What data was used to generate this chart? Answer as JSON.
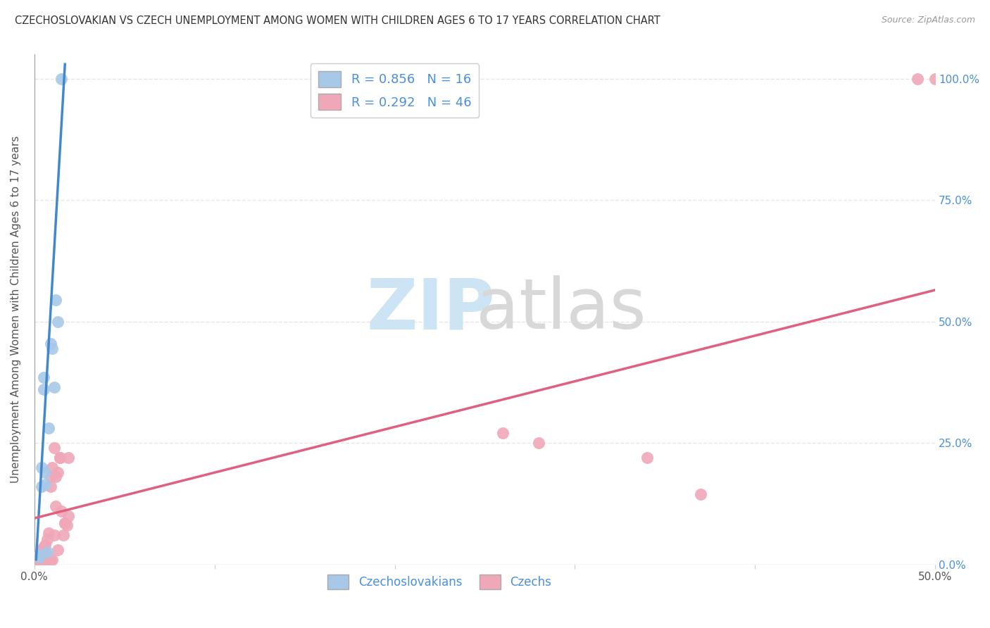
{
  "title": "CZECHOSLOVAKIAN VS CZECH UNEMPLOYMENT AMONG WOMEN WITH CHILDREN AGES 6 TO 17 YEARS CORRELATION CHART",
  "source": "Source: ZipAtlas.com",
  "ylabel": "Unemployment Among Women with Children Ages 6 to 17 years",
  "xlim": [
    0,
    0.5
  ],
  "ylim": [
    0,
    1.05
  ],
  "background_color": "#ffffff",
  "grid_color": "#e0e0e0",
  "blue_color": "#a8c8e8",
  "pink_color": "#f0a8b8",
  "line_blue": "#4488cc",
  "line_pink": "#e06080",
  "czechoslovakian_label": "Czechoslovakians",
  "czech_label": "Czechs",
  "blue_scatter_x": [
    0.003,
    0.003,
    0.004,
    0.004,
    0.005,
    0.005,
    0.006,
    0.006,
    0.007,
    0.008,
    0.009,
    0.01,
    0.011,
    0.012,
    0.013,
    0.015
  ],
  "blue_scatter_y": [
    0.015,
    0.02,
    0.2,
    0.16,
    0.385,
    0.36,
    0.165,
    0.19,
    0.025,
    0.28,
    0.455,
    0.445,
    0.365,
    0.545,
    0.5,
    1.0
  ],
  "pink_scatter_x": [
    0.001,
    0.001,
    0.002,
    0.002,
    0.003,
    0.003,
    0.003,
    0.004,
    0.004,
    0.004,
    0.005,
    0.005,
    0.005,
    0.006,
    0.006,
    0.006,
    0.007,
    0.007,
    0.008,
    0.008,
    0.009,
    0.009,
    0.009,
    0.01,
    0.01,
    0.011,
    0.011,
    0.012,
    0.012,
    0.013,
    0.013,
    0.014,
    0.014,
    0.015,
    0.016,
    0.017,
    0.017,
    0.018,
    0.019,
    0.019,
    0.34,
    0.37,
    0.26,
    0.28,
    0.49,
    0.5
  ],
  "pink_scatter_y": [
    0.01,
    0.005,
    0.005,
    0.008,
    0.012,
    0.005,
    0.02,
    0.008,
    0.005,
    0.03,
    0.01,
    0.005,
    0.035,
    0.01,
    0.04,
    0.005,
    0.052,
    0.02,
    0.065,
    0.005,
    0.16,
    0.18,
    0.01,
    0.2,
    0.01,
    0.24,
    0.06,
    0.12,
    0.18,
    0.19,
    0.03,
    0.22,
    0.22,
    0.11,
    0.06,
    0.085,
    0.085,
    0.08,
    0.22,
    0.1,
    0.22,
    0.145,
    0.27,
    0.25,
    1.0,
    1.0
  ],
  "blue_trendline_x": [
    0.001,
    0.017
  ],
  "blue_trendline_y": [
    0.01,
    1.03
  ],
  "pink_trendline_x": [
    0.0,
    0.5
  ],
  "pink_trendline_y": [
    0.095,
    0.565
  ]
}
